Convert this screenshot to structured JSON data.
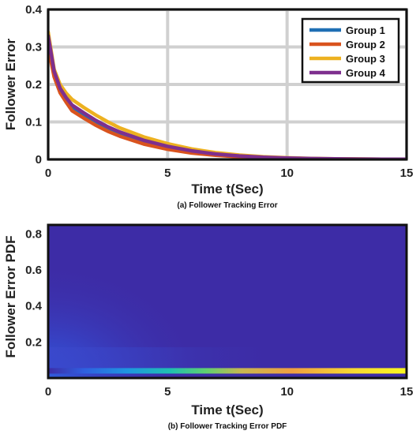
{
  "chart_data": [
    {
      "type": "line",
      "xlabel": "Time t(Sec)",
      "ylabel": "Follower Error",
      "caption": "(a) Follower Tracking Error",
      "xlim": [
        0,
        15
      ],
      "ylim": [
        0,
        0.4
      ],
      "xticks": [
        "0",
        "5",
        "10",
        "15"
      ],
      "yticks": [
        "0",
        "0.1",
        "0.2",
        "0.3",
        "0.4"
      ],
      "grid": true,
      "legend_position": "top-right",
      "x": [
        0,
        0.25,
        0.5,
        0.75,
        1,
        1.5,
        2,
        2.5,
        3,
        4,
        5,
        6,
        7,
        8,
        9,
        10,
        11,
        12,
        13,
        14,
        15
      ],
      "series": [
        {
          "name": "Group 1",
          "color": "#1f6fb4",
          "values": [
            0.3,
            0.23,
            0.185,
            0.16,
            0.138,
            0.118,
            0.098,
            0.082,
            0.068,
            0.046,
            0.03,
            0.019,
            0.012,
            0.0075,
            0.0048,
            0.003,
            0.0019,
            0.0012,
            0.0008,
            0.0005,
            0.0003
          ]
        },
        {
          "name": "Group 2",
          "color": "#d9531e",
          "values": [
            0.3,
            0.22,
            0.178,
            0.153,
            0.13,
            0.11,
            0.091,
            0.075,
            0.062,
            0.041,
            0.027,
            0.017,
            0.011,
            0.007,
            0.0045,
            0.0029,
            0.0018,
            0.0012,
            0.0008,
            0.0005,
            0.0003
          ]
        },
        {
          "name": "Group 3",
          "color": "#edb120",
          "values": [
            0.34,
            0.24,
            0.2,
            0.177,
            0.16,
            0.138,
            0.118,
            0.1,
            0.084,
            0.06,
            0.042,
            0.028,
            0.018,
            0.0115,
            0.0072,
            0.0045,
            0.0028,
            0.0017,
            0.0011,
            0.0007,
            0.0004
          ]
        },
        {
          "name": "Group 4",
          "color": "#7e2f8e",
          "values": [
            0.33,
            0.235,
            0.19,
            0.165,
            0.145,
            0.124,
            0.104,
            0.087,
            0.073,
            0.051,
            0.035,
            0.023,
            0.0145,
            0.0092,
            0.0058,
            0.0036,
            0.0023,
            0.0014,
            0.0009,
            0.0006,
            0.0004
          ]
        }
      ]
    },
    {
      "type": "heatmap",
      "xlabel": "Time t(Sec)",
      "ylabel": "Follower Error PDF",
      "caption": "(b) Follower Tracking Error PDF",
      "xlim": [
        0,
        15
      ],
      "ylim": [
        0,
        0.85
      ],
      "xticks": [
        "0",
        "5",
        "10",
        "15"
      ],
      "yticks": [
        "0.2",
        "0.4",
        "0.6",
        "0.8"
      ],
      "ytick_values": [
        0.2,
        0.4,
        0.6,
        0.8
      ],
      "background_color": "#3d2ca6",
      "ridge_y": 0.04,
      "colormap": [
        "#3d2ca6",
        "#2f5fe0",
        "#1e96e0",
        "#1fc0b0",
        "#5fd070",
        "#c8b650",
        "#f0a040",
        "#f8dc30",
        "#fbf820"
      ]
    }
  ]
}
